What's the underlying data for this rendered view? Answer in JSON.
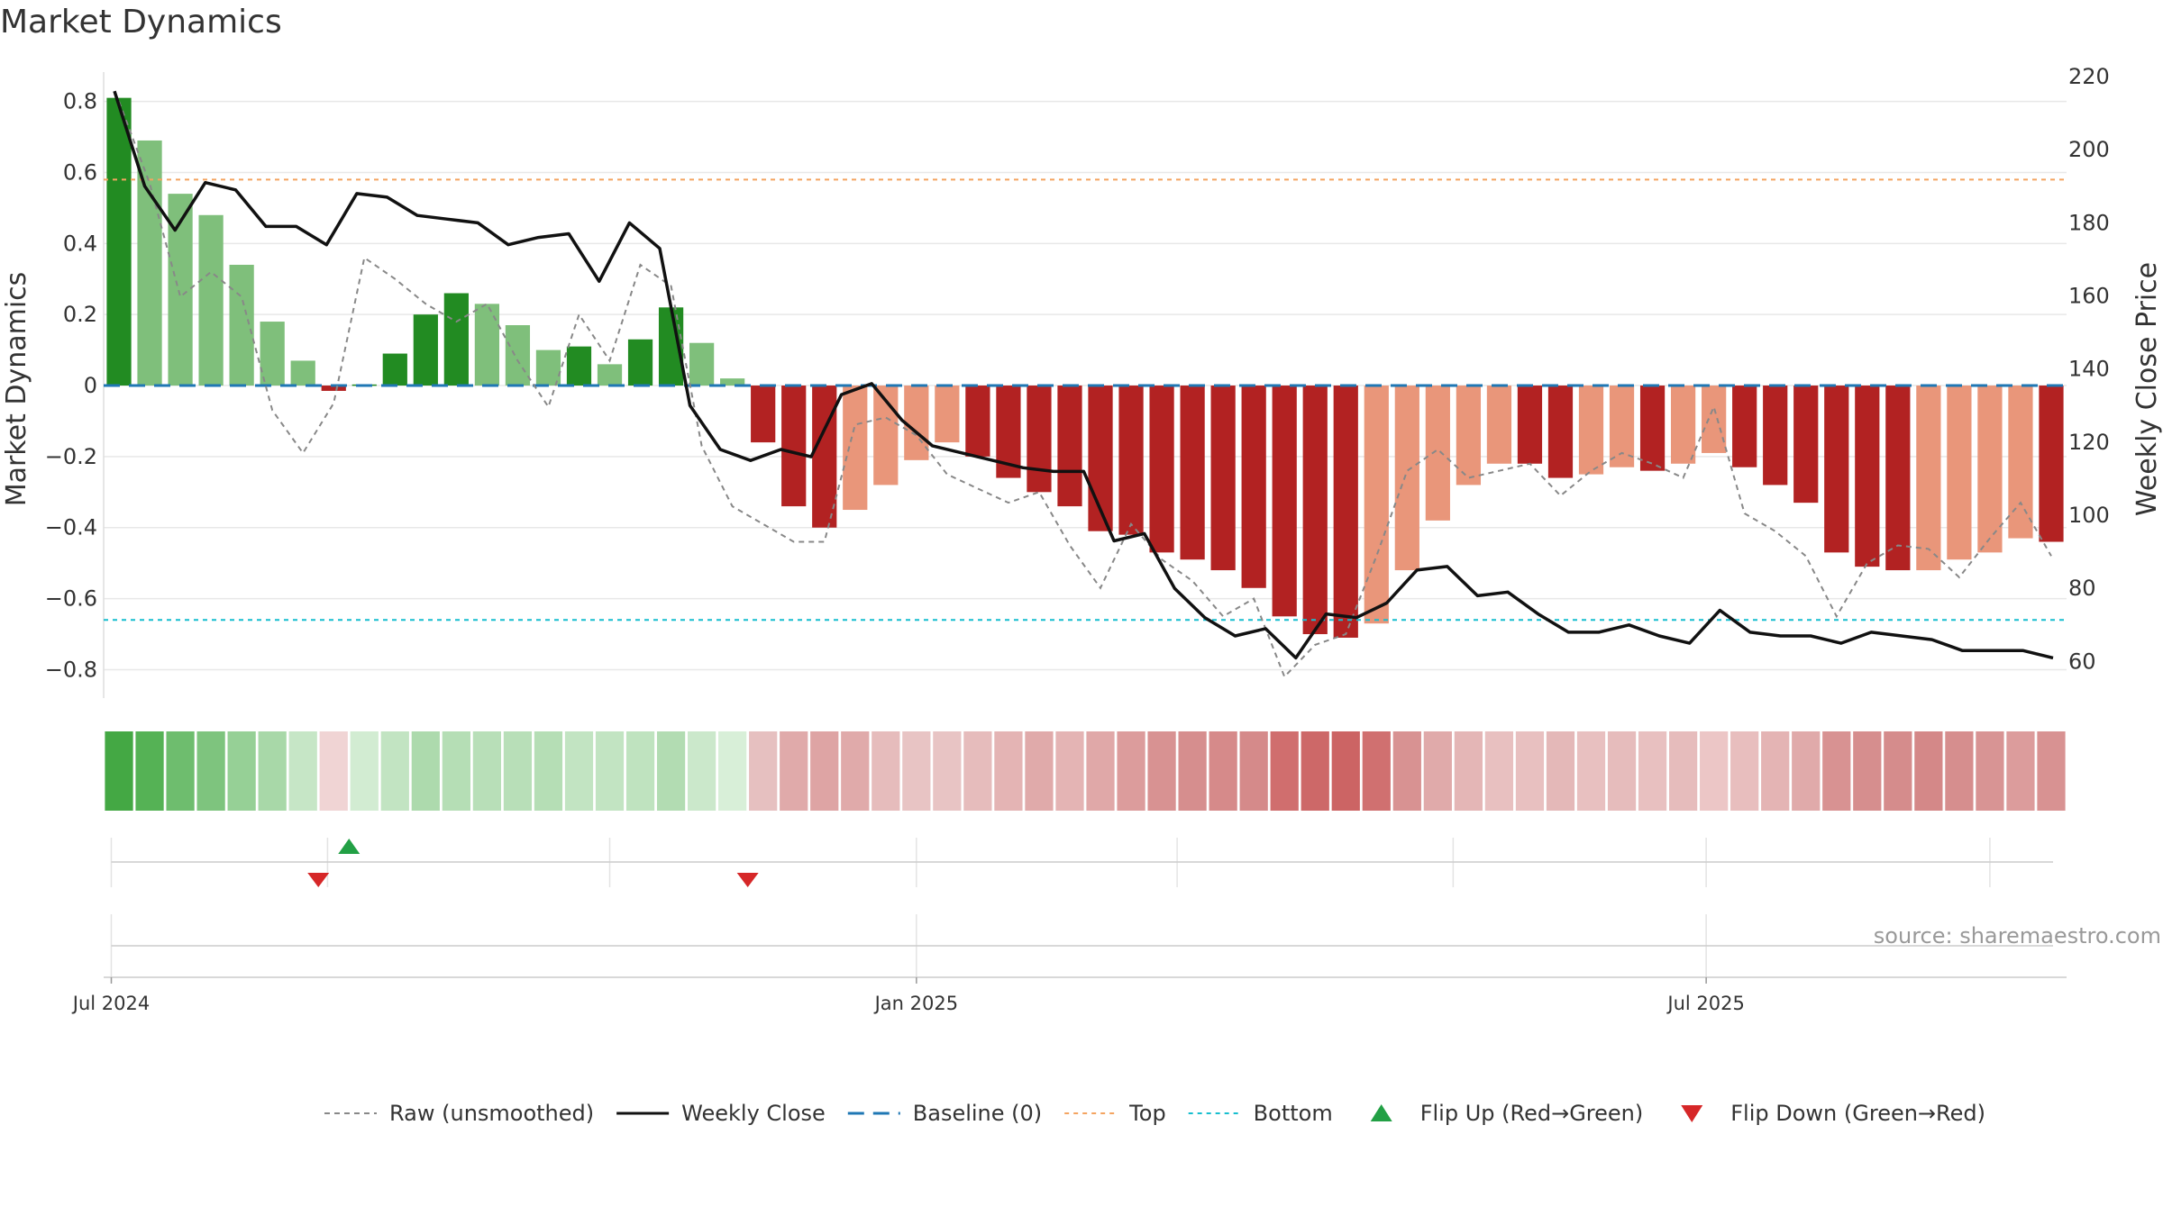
{
  "chart_data": {
    "type": "bar",
    "title": "Market Dynamics",
    "ylabel_left": "Market Dynamics",
    "ylabel_right": "Weekly Close Price",
    "ylim_left": [
      -0.88,
      0.87
    ],
    "ylim_right": [
      50,
      220
    ],
    "left_ticks": [
      0.8,
      0.6,
      0.4,
      0.2,
      0,
      -0.2,
      -0.4,
      -0.6,
      -0.8
    ],
    "left_tick_labels": [
      "0.8",
      "0.6",
      "0.4",
      "0.2",
      "0",
      "−0.2",
      "−0.4",
      "−0.6",
      "−0.8"
    ],
    "right_ticks": [
      220,
      200,
      180,
      160,
      140,
      120,
      100,
      80,
      60
    ],
    "right_tick_labels": [
      "220",
      "200",
      "180",
      "160",
      "140",
      "120",
      "100",
      "80",
      "60"
    ],
    "x_tick_labels": [
      "Jul 2024",
      "Jan 2025",
      "Jul 2025"
    ],
    "x_tick_positions": [
      0.25,
      26.5,
      52.25
    ],
    "grid": true,
    "top_level": 0.58,
    "bottom_level": -0.66,
    "baseline": 0,
    "bar_values": [
      0.81,
      0.69,
      0.54,
      0.48,
      0.34,
      0.18,
      0.07,
      -0.015,
      0.003,
      0.09,
      0.2,
      0.26,
      0.23,
      0.17,
      0.1,
      0.11,
      0.06,
      0.13,
      0.22,
      0.12,
      0.02,
      -0.16,
      -0.34,
      -0.4,
      -0.35,
      -0.28,
      -0.21,
      -0.16,
      -0.2,
      -0.26,
      -0.3,
      -0.34,
      -0.41,
      -0.42,
      -0.47,
      -0.49,
      -0.52,
      -0.57,
      -0.65,
      -0.7,
      -0.71,
      -0.67,
      -0.52,
      -0.38,
      -0.28,
      -0.22,
      -0.22,
      -0.26,
      -0.25,
      -0.23,
      -0.24,
      -0.22,
      -0.19,
      -0.23,
      -0.28,
      -0.33,
      -0.47,
      -0.51,
      -0.52,
      -0.52,
      -0.49,
      -0.47,
      -0.43,
      -0.44
    ],
    "bar_colors": [
      "#228b22",
      "#7fbf7b",
      "#7fbf7b",
      "#7fbf7b",
      "#7fbf7b",
      "#7fbf7b",
      "#7fbf7b",
      "#b22222",
      "#228b22",
      "#228b22",
      "#228b22",
      "#228b22",
      "#7fbf7b",
      "#7fbf7b",
      "#7fbf7b",
      "#228b22",
      "#7fbf7b",
      "#228b22",
      "#228b22",
      "#7fbf7b",
      "#7fbf7b",
      "#b22222",
      "#b22222",
      "#b22222",
      "#e9967a",
      "#e9967a",
      "#e9967a",
      "#e9967a",
      "#b22222",
      "#b22222",
      "#b22222",
      "#b22222",
      "#b22222",
      "#b22222",
      "#b22222",
      "#b22222",
      "#b22222",
      "#b22222",
      "#b22222",
      "#b22222",
      "#b22222",
      "#e9967a",
      "#e9967a",
      "#e9967a",
      "#e9967a",
      "#e9967a",
      "#b22222",
      "#b22222",
      "#e9967a",
      "#e9967a",
      "#b22222",
      "#e9967a",
      "#e9967a",
      "#b22222",
      "#b22222",
      "#b22222",
      "#b22222",
      "#b22222",
      "#b22222",
      "#e9967a",
      "#e9967a",
      "#e9967a",
      "#e9967a",
      "#b22222"
    ],
    "raw_values": [
      0.8,
      0.57,
      0.25,
      0.32,
      0.25,
      -0.07,
      -0.19,
      -0.05,
      0.36,
      0.3,
      0.23,
      0.18,
      0.23,
      0.07,
      -0.06,
      0.2,
      0.07,
      0.34,
      0.28,
      -0.17,
      -0.34,
      -0.39,
      -0.44,
      -0.44,
      -0.11,
      -0.09,
      -0.14,
      -0.25,
      -0.29,
      -0.33,
      -0.3,
      -0.45,
      -0.57,
      -0.39,
      -0.49,
      -0.55,
      -0.65,
      -0.6,
      -0.82,
      -0.73,
      -0.7,
      -0.48,
      -0.24,
      -0.18,
      -0.26,
      -0.24,
      -0.22,
      -0.31,
      -0.24,
      -0.19,
      -0.22,
      -0.26,
      -0.06,
      -0.36,
      -0.41,
      -0.48,
      -0.65,
      -0.5,
      -0.45,
      -0.46,
      -0.54,
      -0.43,
      -0.33,
      -0.48
    ],
    "close_values": [
      216,
      190,
      178,
      191,
      189,
      179,
      179,
      174,
      188,
      187,
      182,
      181,
      180,
      174,
      176,
      177,
      164,
      180,
      173,
      130,
      118,
      115,
      118,
      116,
      133,
      136,
      126,
      119,
      117,
      115,
      113,
      112,
      112,
      93,
      95,
      80,
      72,
      67,
      69,
      61,
      73,
      72,
      76,
      85,
      86,
      78,
      79,
      73,
      68,
      68,
      70,
      67,
      65,
      74,
      68,
      67,
      67,
      65,
      68,
      67,
      66,
      63,
      63,
      63,
      61
    ],
    "strip_colors": [
      "#44a844",
      "#55b255",
      "#6ebd6e",
      "#7ec47e",
      "#96d096",
      "#a8d8a8",
      "#c6e6c6",
      "#f0d4d4",
      "#d2ecd2",
      "#c2e4c2",
      "#addaad",
      "#b5deb5",
      "#b8dfb8",
      "#b8dfb8",
      "#b5deb5",
      "#c2e4c2",
      "#c2e4c2",
      "#bfe3bf",
      "#b2dcb2",
      "#cbe8cb",
      "#d8efd8",
      "#e6c0c0",
      "#e0aaaa",
      "#dea4a4",
      "#e0aaaa",
      "#e6bcbc",
      "#e8c4c4",
      "#e8c4c4",
      "#e6bcbc",
      "#e4b4b4",
      "#e0aaaa",
      "#e4b4b4",
      "#e0a8a8",
      "#dc9c9c",
      "#d89292",
      "#d68e8e",
      "#d68a8a",
      "#d58a8a",
      "#d06e6e",
      "#cd6868",
      "#cc6464",
      "#d07070",
      "#d89292",
      "#e0aaaa",
      "#e4b6b6",
      "#e8c0c0",
      "#e8c0c0",
      "#e4b8b8",
      "#e8c0c0",
      "#e6bcbc",
      "#e8c0c0",
      "#e6bcbc",
      "#ecc6c6",
      "#e8bebe",
      "#e4b4b4",
      "#e0aaaa",
      "#d89292",
      "#d68e8e",
      "#d58c8c",
      "#d48888",
      "#d68e8e",
      "#d89494",
      "#dc9c9c",
      "#d89292"
    ],
    "flip_up_positions": [
      8.0
    ],
    "flip_down_positions": [
      7.0,
      21.0
    ],
    "legend_position": "bottom-center",
    "legend": [
      {
        "label": "Raw (unsmoothed)",
        "kind": "line",
        "color": "#888888",
        "dash": "6,5",
        "width": 2
      },
      {
        "label": "Weekly Close",
        "kind": "line",
        "color": "#111111",
        "dash": "",
        "width": 3
      },
      {
        "label": "Baseline (0)",
        "kind": "line",
        "color": "#1f77b4",
        "dash": "18,10",
        "width": 3
      },
      {
        "label": "Top",
        "kind": "line",
        "color": "#f4a460",
        "dash": "5,5",
        "width": 2
      },
      {
        "label": "Bottom",
        "kind": "line",
        "color": "#17becf",
        "dash": "5,5",
        "width": 2
      },
      {
        "label": "Flip Up (Red→Green)",
        "kind": "tri-up",
        "color": "#22a045"
      },
      {
        "label": "Flip Down (Green→Red)",
        "kind": "tri-down",
        "color": "#d62728"
      }
    ],
    "source": "source: sharemaestro.com"
  }
}
